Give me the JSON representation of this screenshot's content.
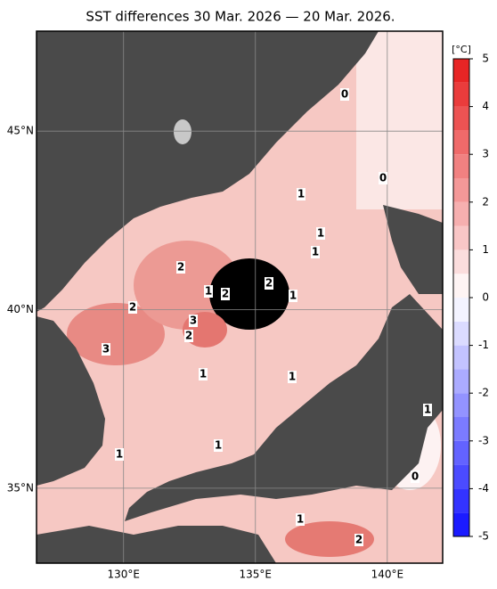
{
  "map": {
    "title": "SST differences 30 Mar. 2026 — 20 Mar. 2026.",
    "xlim": [
      126.7,
      142.1
    ],
    "ylim": [
      32.9,
      47.8
    ],
    "lon_ticks": [
      {
        "value": 130,
        "label": "130°E"
      },
      {
        "value": 135,
        "label": "135°E"
      },
      {
        "value": 140,
        "label": "140°E"
      }
    ],
    "lat_ticks": [
      {
        "value": 45,
        "label": "45°N"
      },
      {
        "value": 40,
        "label": "40°N"
      },
      {
        "value": 35,
        "label": "35°N"
      }
    ],
    "colorbar": {
      "unit": "[°C]",
      "range": [
        -5,
        5
      ],
      "ticks": [
        5,
        4,
        3,
        2,
        1,
        0,
        -1,
        -2,
        -3,
        -4,
        -5
      ]
    },
    "contour_labels": [
      0,
      0,
      1,
      1,
      1,
      2,
      2,
      1,
      2,
      1,
      2,
      3,
      2,
      3,
      1,
      1,
      1,
      1,
      1,
      0,
      1,
      2
    ]
  }
}
